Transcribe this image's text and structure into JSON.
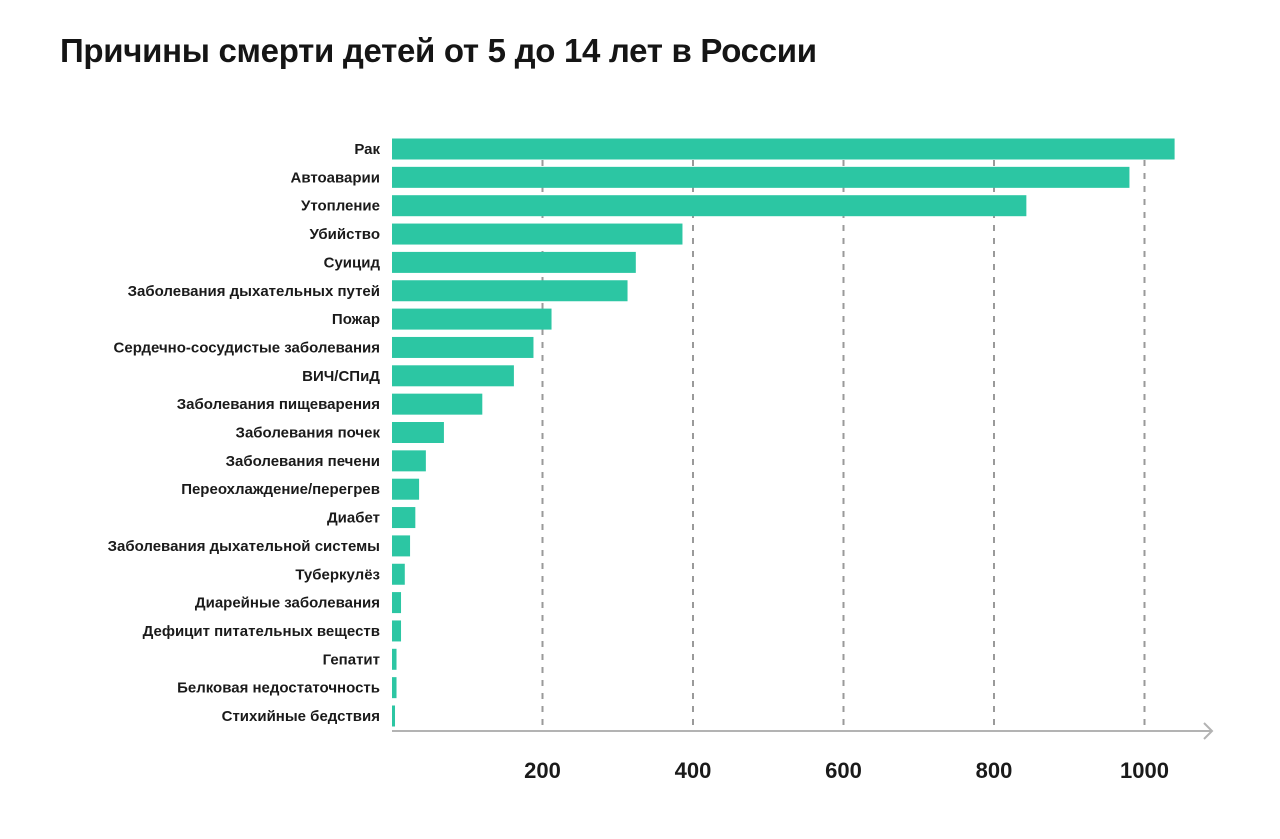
{
  "chart_data": {
    "type": "bar",
    "orientation": "horizontal",
    "title": "Причины смерти детей от 5 до 14 лет в России",
    "xlabel": "",
    "ylabel": "",
    "xlim": [
      0,
      1060
    ],
    "xticks": [
      200,
      400,
      600,
      800,
      1000
    ],
    "grid": "vertical-dashed",
    "bar_color": "#2cc6a3",
    "categories": [
      "Рак",
      "Автоаварии",
      "Утопление",
      "Убийство",
      "Суицид",
      "Заболевания дыхательных путей",
      "Пожар",
      "Сердечно-сосудистые заболевания",
      "ВИЧ/СПиД",
      "Заболевания пищеварения",
      "Заболевания почек",
      "Заболевания печени",
      "Переохлаждение/перегрев",
      "Диабет",
      "Заболевания дыхательной системы",
      "Туберкулёз",
      "Диарейные заболевания",
      "Дефицит питательных веществ",
      "Гепатит",
      "Белковая недостаточность",
      "Стихийные бедствия"
    ],
    "values": [
      1040,
      980,
      843,
      386,
      324,
      313,
      212,
      188,
      162,
      120,
      69,
      45,
      36,
      31,
      24,
      17,
      12,
      12,
      6,
      6,
      4
    ]
  }
}
